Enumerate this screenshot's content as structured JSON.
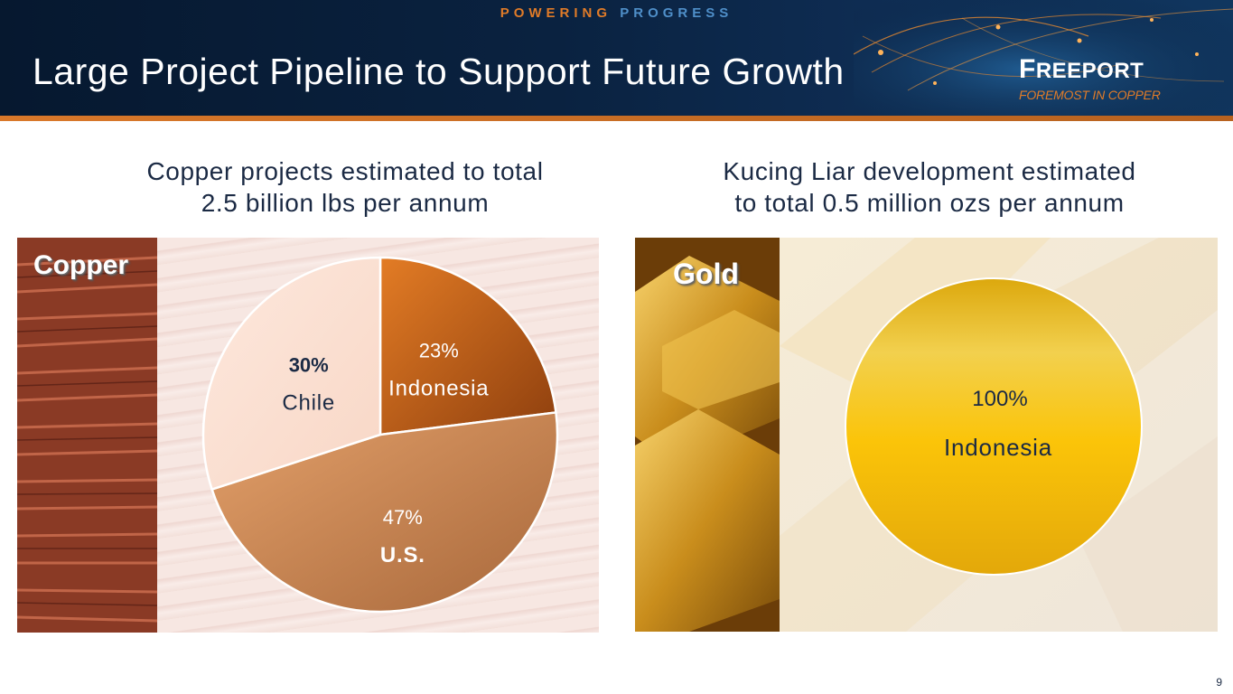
{
  "header": {
    "tagline_word1": "POWERING",
    "tagline_word2": "PROGRESS",
    "title": "Large Project Pipeline to Support Future Growth",
    "logo_name_first": "F",
    "logo_name_rest": "REEPORT",
    "logo_tagline": "FOREMOST IN COPPER"
  },
  "copper": {
    "subtitle_line1": "Copper projects estimated to total",
    "subtitle_line2": "2.5 billion lbs per annum",
    "panel_label": "Copper"
  },
  "gold": {
    "subtitle_line1": "Kucing Liar development estimated",
    "subtitle_line2": "to total 0.5 million ozs per annum",
    "panel_label": "Gold"
  },
  "colors": {
    "indonesia_copper": "#c8621a",
    "us_copper": "#c98a55",
    "chile_copper": "#fbe3d6",
    "gold_fill": "#f3c018",
    "navy": "#0a2240",
    "orange": "#e07b28",
    "blue": "#4f8fc9"
  },
  "chart_data": [
    {
      "type": "pie",
      "title": "Copper",
      "categories": [
        "Indonesia",
        "U.S.",
        "Chile"
      ],
      "values": [
        23,
        47,
        30
      ],
      "labels": [
        "23%",
        "47%",
        "30%"
      ],
      "start_angle_deg": 0,
      "direction": "clockwise"
    },
    {
      "type": "pie",
      "title": "Gold",
      "categories": [
        "Indonesia"
      ],
      "values": [
        100
      ],
      "labels": [
        "100%"
      ]
    }
  ],
  "footer": {
    "page_number": "9"
  }
}
